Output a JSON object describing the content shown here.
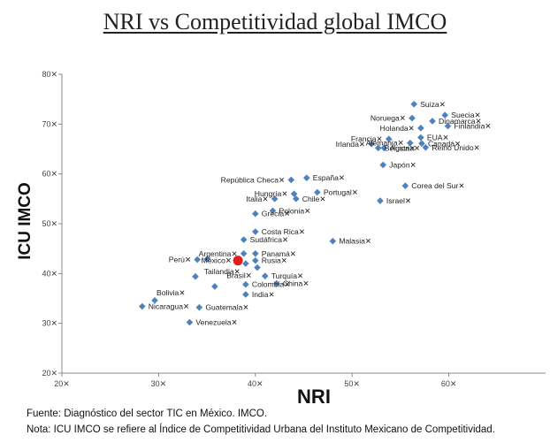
{
  "chart_data": {
    "type": "scatter",
    "title": "NRI vs Competitividad global IMCO",
    "xlabel": "NRI",
    "ylabel": "ICU IMCO",
    "xlim": [
      20,
      70
    ],
    "ylim": [
      20,
      80
    ],
    "xticks": [
      20,
      30,
      40,
      50,
      60
    ],
    "yticks": [
      20,
      30,
      40,
      50,
      60,
      70,
      80
    ],
    "tick_suffix": "✕",
    "colors": {
      "point": "#4f81bd",
      "highlight": "#e02020",
      "axis": "#888888",
      "label": "#222222"
    },
    "points": [
      {
        "label": "Suiza✕",
        "x": 56.4,
        "y": 74.0,
        "label_pos": "right"
      },
      {
        "label": "Suecia✕",
        "x": 59.6,
        "y": 71.8,
        "label_pos": "right"
      },
      {
        "label": "Noruega✕",
        "x": 56.2,
        "y": 71.2,
        "label_pos": "left"
      },
      {
        "label": "Dinamarca✕",
        "x": 58.3,
        "y": 70.6,
        "label_pos": "right"
      },
      {
        "label": "Finlandia✕",
        "x": 59.9,
        "y": 69.6,
        "label_pos": "right"
      },
      {
        "label": "Holanda✕",
        "x": 57.1,
        "y": 69.2,
        "label_pos": "left"
      },
      {
        "label": "EUA✕",
        "x": 57.1,
        "y": 67.3,
        "label_pos": "right"
      },
      {
        "label": "Francia✕",
        "x": 53.8,
        "y": 67.0,
        "label_pos": "left"
      },
      {
        "label": "Irlanda✕",
        "x": 52.0,
        "y": 66.0,
        "label_pos": "left"
      },
      {
        "label": "Alemania✕",
        "x": 56.0,
        "y": 66.2,
        "label_pos": "left"
      },
      {
        "label": "Canadá✕",
        "x": 57.2,
        "y": 66.1,
        "label_pos": "right"
      },
      {
        "label": "Bélgica✕",
        "x": 52.7,
        "y": 65.2,
        "label_pos": "right"
      },
      {
        "label": "Austria✕",
        "x": 53.3,
        "y": 65.2,
        "label_pos": "right"
      },
      {
        "label": "Reino Unido✕",
        "x": 57.6,
        "y": 65.3,
        "label_pos": "right"
      },
      {
        "label": "Japón✕",
        "x": 53.2,
        "y": 61.8,
        "label_pos": "right"
      },
      {
        "label": "España✕",
        "x": 45.3,
        "y": 59.2,
        "label_pos": "right"
      },
      {
        "label": "República Checa✕",
        "x": 43.7,
        "y": 58.8,
        "label_pos": "left"
      },
      {
        "label": "Corea del Sur✕",
        "x": 55.5,
        "y": 57.6,
        "label_pos": "right"
      },
      {
        "label": "Hungría✕",
        "x": 44.0,
        "y": 56.0,
        "label_pos": "left"
      },
      {
        "label": "Portugal✕",
        "x": 46.4,
        "y": 56.3,
        "label_pos": "right"
      },
      {
        "label": "Italia✕",
        "x": 42.0,
        "y": 55.0,
        "label_pos": "left"
      },
      {
        "label": "Chile✕",
        "x": 44.2,
        "y": 55.0,
        "label_pos": "right"
      },
      {
        "label": "Israel✕",
        "x": 52.9,
        "y": 54.6,
        "label_pos": "right"
      },
      {
        "label": "Polonia✕",
        "x": 41.8,
        "y": 52.6,
        "label_pos": "right"
      },
      {
        "label": "Grecia✕",
        "x": 40.0,
        "y": 52.0,
        "label_pos": "right"
      },
      {
        "label": "Costa Rica✕",
        "x": 40.0,
        "y": 48.4,
        "label_pos": "right"
      },
      {
        "label": "Sudáfrica✕",
        "x": 38.8,
        "y": 46.8,
        "label_pos": "right"
      },
      {
        "label": "Malasia✕",
        "x": 48.0,
        "y": 46.5,
        "label_pos": "right"
      },
      {
        "label": "Argentina✕",
        "x": 38.8,
        "y": 44.0,
        "label_pos": "left"
      },
      {
        "label": "Panamá✕",
        "x": 40.0,
        "y": 44.0,
        "label_pos": "right"
      },
      {
        "label": "Perú✕",
        "x": 34.0,
        "y": 42.8,
        "label_pos": "left"
      },
      {
        "label": "",
        "x": 35.0,
        "y": 42.9,
        "label_pos": "right"
      },
      {
        "label": "México✕",
        "x": 38.2,
        "y": 42.6,
        "label_pos": "left",
        "highlight": true
      },
      {
        "label": "Rusia✕",
        "x": 40.0,
        "y": 42.6,
        "label_pos": "right"
      },
      {
        "label": "Tailandia✕",
        "x": 39.0,
        "y": 42.0,
        "label_pos": "below-left"
      },
      {
        "label": "Brasil✕",
        "x": 40.2,
        "y": 41.2,
        "label_pos": "below-left"
      },
      {
        "label": "",
        "x": 33.8,
        "y": 39.4,
        "label_pos": "right"
      },
      {
        "label": "Turquía✕",
        "x": 41.0,
        "y": 39.5,
        "label_pos": "right"
      },
      {
        "label": "Colombia✕",
        "x": 39.0,
        "y": 37.8,
        "label_pos": "right"
      },
      {
        "label": "China✕",
        "x": 42.2,
        "y": 38.0,
        "label_pos": "right"
      },
      {
        "label": "",
        "x": 35.8,
        "y": 37.4,
        "label_pos": "right"
      },
      {
        "label": "India✕",
        "x": 39.0,
        "y": 35.8,
        "label_pos": "right"
      },
      {
        "label": "Bolivia✕",
        "x": 29.6,
        "y": 34.6,
        "label_pos": "above-right"
      },
      {
        "label": "Nicaragua✕",
        "x": 28.3,
        "y": 33.4,
        "label_pos": "right"
      },
      {
        "label": "Guatemala✕",
        "x": 34.2,
        "y": 33.2,
        "label_pos": "right"
      },
      {
        "label": "Venezuela✕",
        "x": 33.2,
        "y": 30.2,
        "label_pos": "right"
      }
    ]
  },
  "footer": {
    "source": "Fuente: Diagnóstico del sector TIC en México. IMCO.",
    "note": "Nota: ICU IMCO se refiere al Índice de Competitividad Urbana del Instituto Mexicano de Competitividad."
  }
}
